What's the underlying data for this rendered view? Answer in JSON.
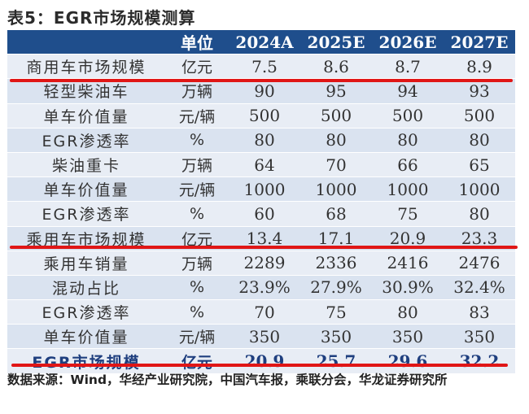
{
  "title": "表5：EGR市场规模测算",
  "table": {
    "headers": [
      "",
      "单位",
      "2024A",
      "2025E",
      "2026E",
      "2027E"
    ],
    "rows": [
      {
        "label": "商用车市场规模",
        "unit": "亿元",
        "values": [
          "7.5",
          "8.6",
          "8.7",
          "8.9"
        ]
      },
      {
        "label": "轻型柴油车",
        "unit": "万辆",
        "values": [
          "90",
          "95",
          "94",
          "93"
        ]
      },
      {
        "label": "单车价值量",
        "unit": "元/辆",
        "values": [
          "500",
          "500",
          "500",
          "500"
        ]
      },
      {
        "label": "EGR渗透率",
        "unit": "%",
        "values": [
          "80",
          "80",
          "80",
          "80"
        ]
      },
      {
        "label": "柴油重卡",
        "unit": "万辆",
        "values": [
          "64",
          "70",
          "66",
          "65"
        ]
      },
      {
        "label": "单车价值量",
        "unit": "元/辆",
        "values": [
          "1000",
          "1000",
          "1000",
          "1000"
        ]
      },
      {
        "label": "EGR渗透率",
        "unit": "%",
        "values": [
          "60",
          "68",
          "75",
          "80"
        ]
      },
      {
        "label": "乘用车市场规模",
        "unit": "亿元",
        "values": [
          "13.4",
          "17.1",
          "20.9",
          "23.3"
        ]
      },
      {
        "label": "乘用车销量",
        "unit": "万辆",
        "values": [
          "2289",
          "2336",
          "2416",
          "2476"
        ]
      },
      {
        "label": "混动占比",
        "unit": "%",
        "values": [
          "23.9%",
          "27.9%",
          "30.9%",
          "32.4%"
        ]
      },
      {
        "label": "EGR渗透率",
        "unit": "%",
        "values": [
          "70",
          "75",
          "80",
          "83"
        ]
      },
      {
        "label": "单车价值量",
        "unit": "元/辆",
        "values": [
          "350",
          "350",
          "350",
          "350"
        ]
      },
      {
        "label": "EGR市场规模",
        "unit": "亿元",
        "values": [
          "20.9",
          "25.7",
          "29.6",
          "32.2"
        ]
      }
    ]
  },
  "source": "数据来源：Wind，华经产业研究院，中国汽车报，乘联分会，华龙证券研究所",
  "colors": {
    "header": "#1f4e8c",
    "row_a": "#e8edf5",
    "row_b": "#dae3f0",
    "highlight_line": "#e01616"
  }
}
